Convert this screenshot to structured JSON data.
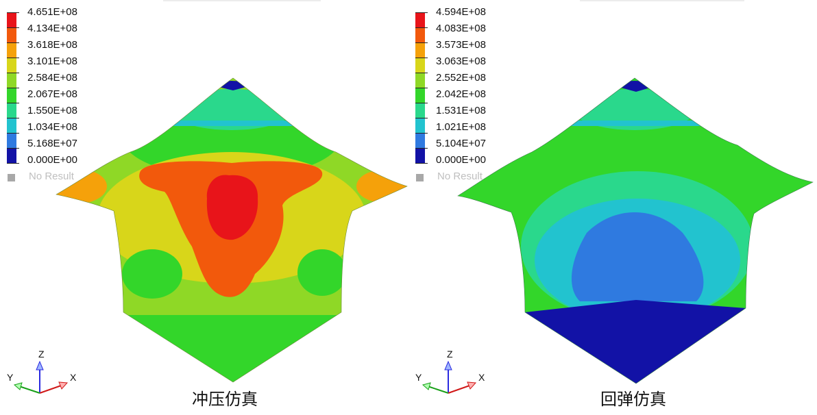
{
  "panels": [
    {
      "caption": "冲压仿真",
      "legend": {
        "values": [
          "4.651E+08",
          "4.134E+08",
          "3.618E+08",
          "3.101E+08",
          "2.584E+08",
          "2.067E+08",
          "1.550E+08",
          "1.034E+08",
          "5.168E+07",
          "0.000E+00"
        ],
        "no_result": "No Result"
      }
    },
    {
      "caption": "回弹仿真",
      "legend": {
        "values": [
          "4.594E+08",
          "4.083E+08",
          "3.573E+08",
          "3.063E+08",
          "2.552E+08",
          "2.042E+08",
          "1.531E+08",
          "1.021E+08",
          "5.104E+07",
          "0.000E+00"
        ],
        "no_result": "No Result"
      }
    }
  ],
  "colors": {
    "scale": [
      "#e8141a",
      "#f2590c",
      "#f5a10a",
      "#d8d61a",
      "#8fd826",
      "#33d62a",
      "#2ad88c",
      "#22c3cf",
      "#2f7ae0",
      "#1212a6"
    ],
    "no_result": "#a8a8a8"
  },
  "triad": {
    "x_label": "X",
    "y_label": "Y",
    "z_label": "Z"
  }
}
